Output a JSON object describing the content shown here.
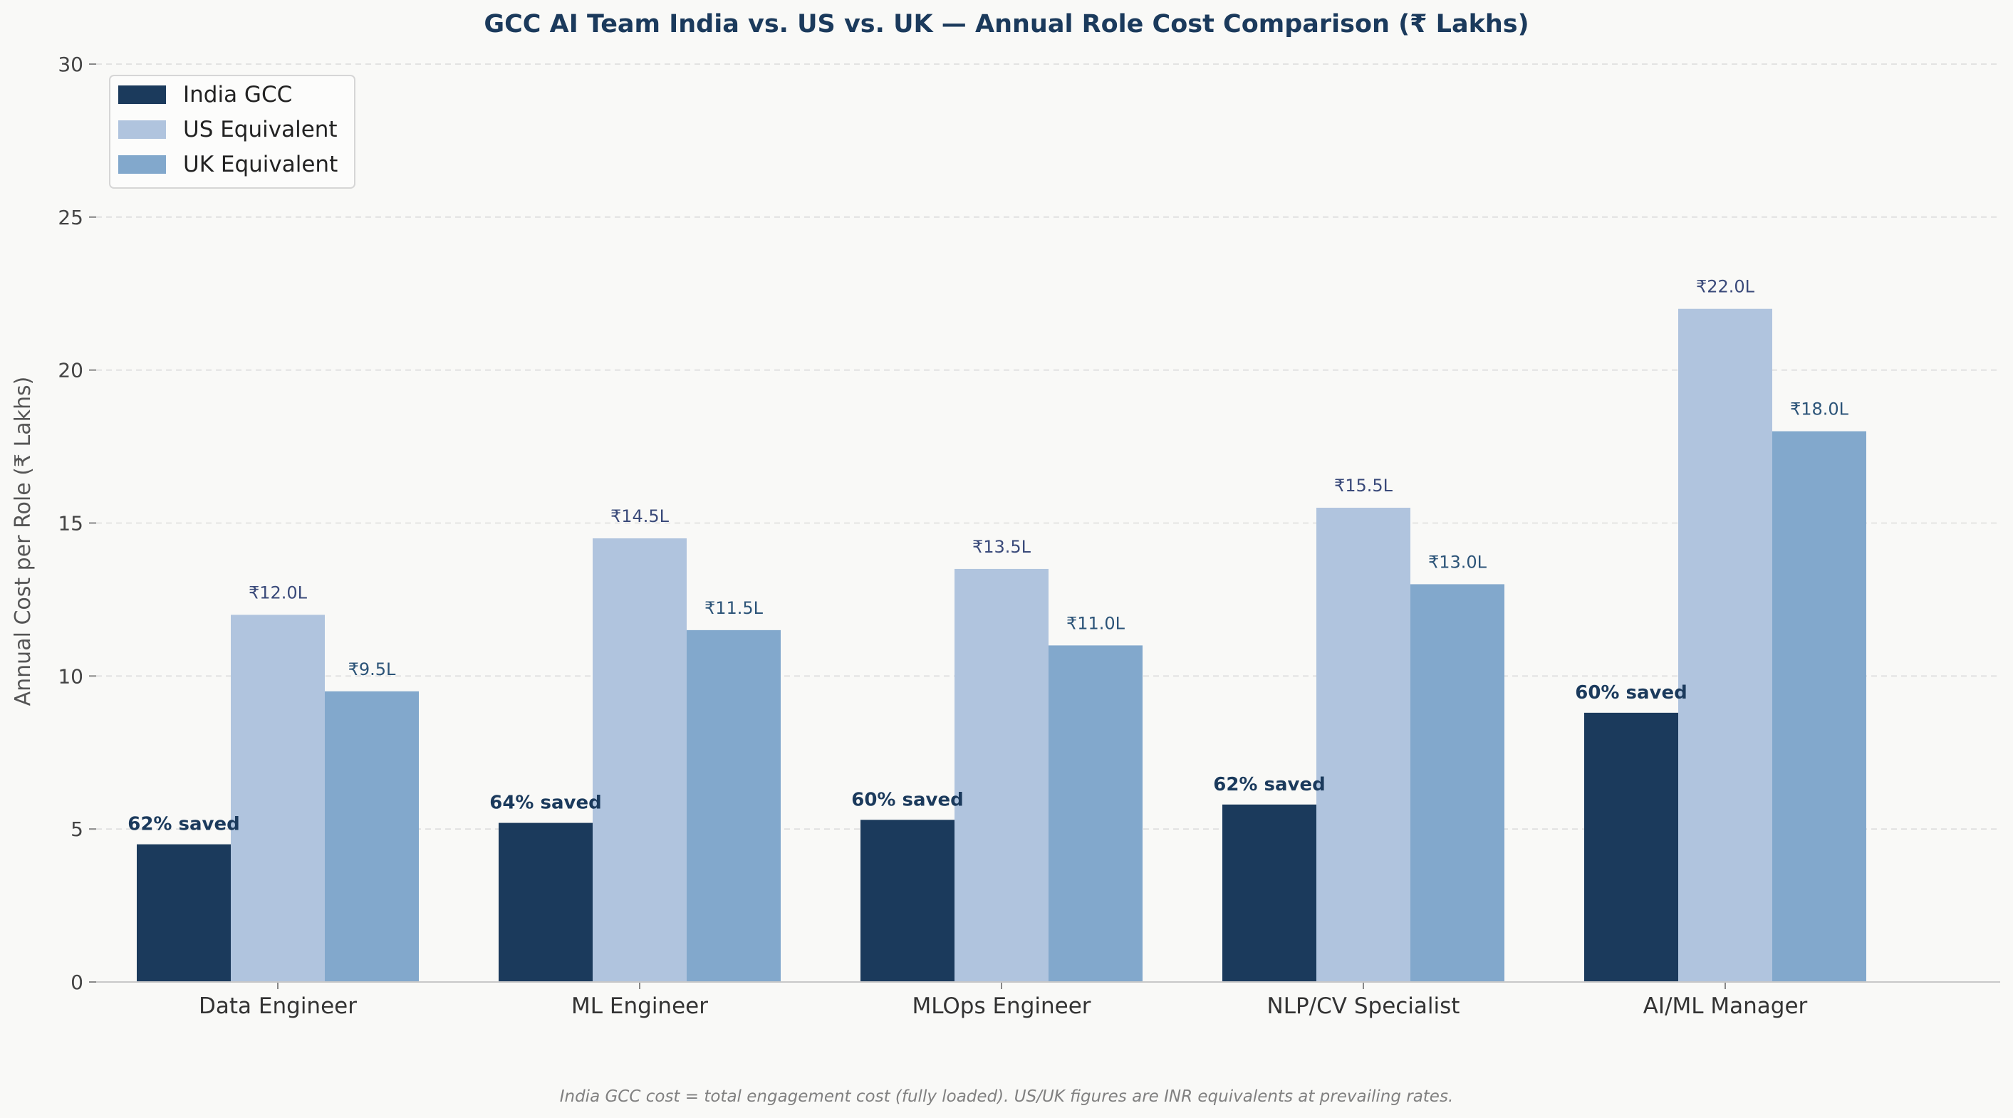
{
  "chart_data": {
    "type": "bar",
    "title": "GCC AI Team India vs. US vs. UK — Annual Role Cost Comparison (₹ Lakhs)",
    "xlabel": "",
    "ylabel": "Annual Cost per Role (₹ Lakhs)",
    "ylim": [
      0,
      30
    ],
    "yticks": [
      0,
      5,
      10,
      15,
      20,
      25,
      30
    ],
    "grid": "horizontal dashed",
    "legend_position": "top-left",
    "categories": [
      "Data Engineer",
      "ML Engineer",
      "MLOps Engineer",
      "NLP/CV Specialist",
      "AI/ML Manager"
    ],
    "series": [
      {
        "name": "India GCC",
        "color": "#1b3a5c",
        "values": [
          4.5,
          5.2,
          5.3,
          5.8,
          8.8
        ],
        "labels": [
          "62% saved",
          "64% saved",
          "60% saved",
          "62% saved",
          "60% saved"
        ]
      },
      {
        "name": "US Equivalent",
        "color": "#b0c4de",
        "label_color": "#3a4a7a",
        "values": [
          12.0,
          14.5,
          13.5,
          15.5,
          22.0
        ],
        "labels": [
          "₹12.0L",
          "₹14.5L",
          "₹13.5L",
          "₹15.5L",
          "₹22.0L"
        ]
      },
      {
        "name": "UK Equivalent",
        "color": "#82a8cc",
        "label_color": "#2c5478",
        "values": [
          9.5,
          11.5,
          11.0,
          13.0,
          18.0
        ],
        "labels": [
          "₹9.5L",
          "₹11.5L",
          "₹11.0L",
          "₹13.0L",
          "₹18.0L"
        ]
      }
    ],
    "footnote": "India GCC cost = total engagement cost (fully loaded). US/UK figures are INR equivalents at prevailing rates."
  }
}
